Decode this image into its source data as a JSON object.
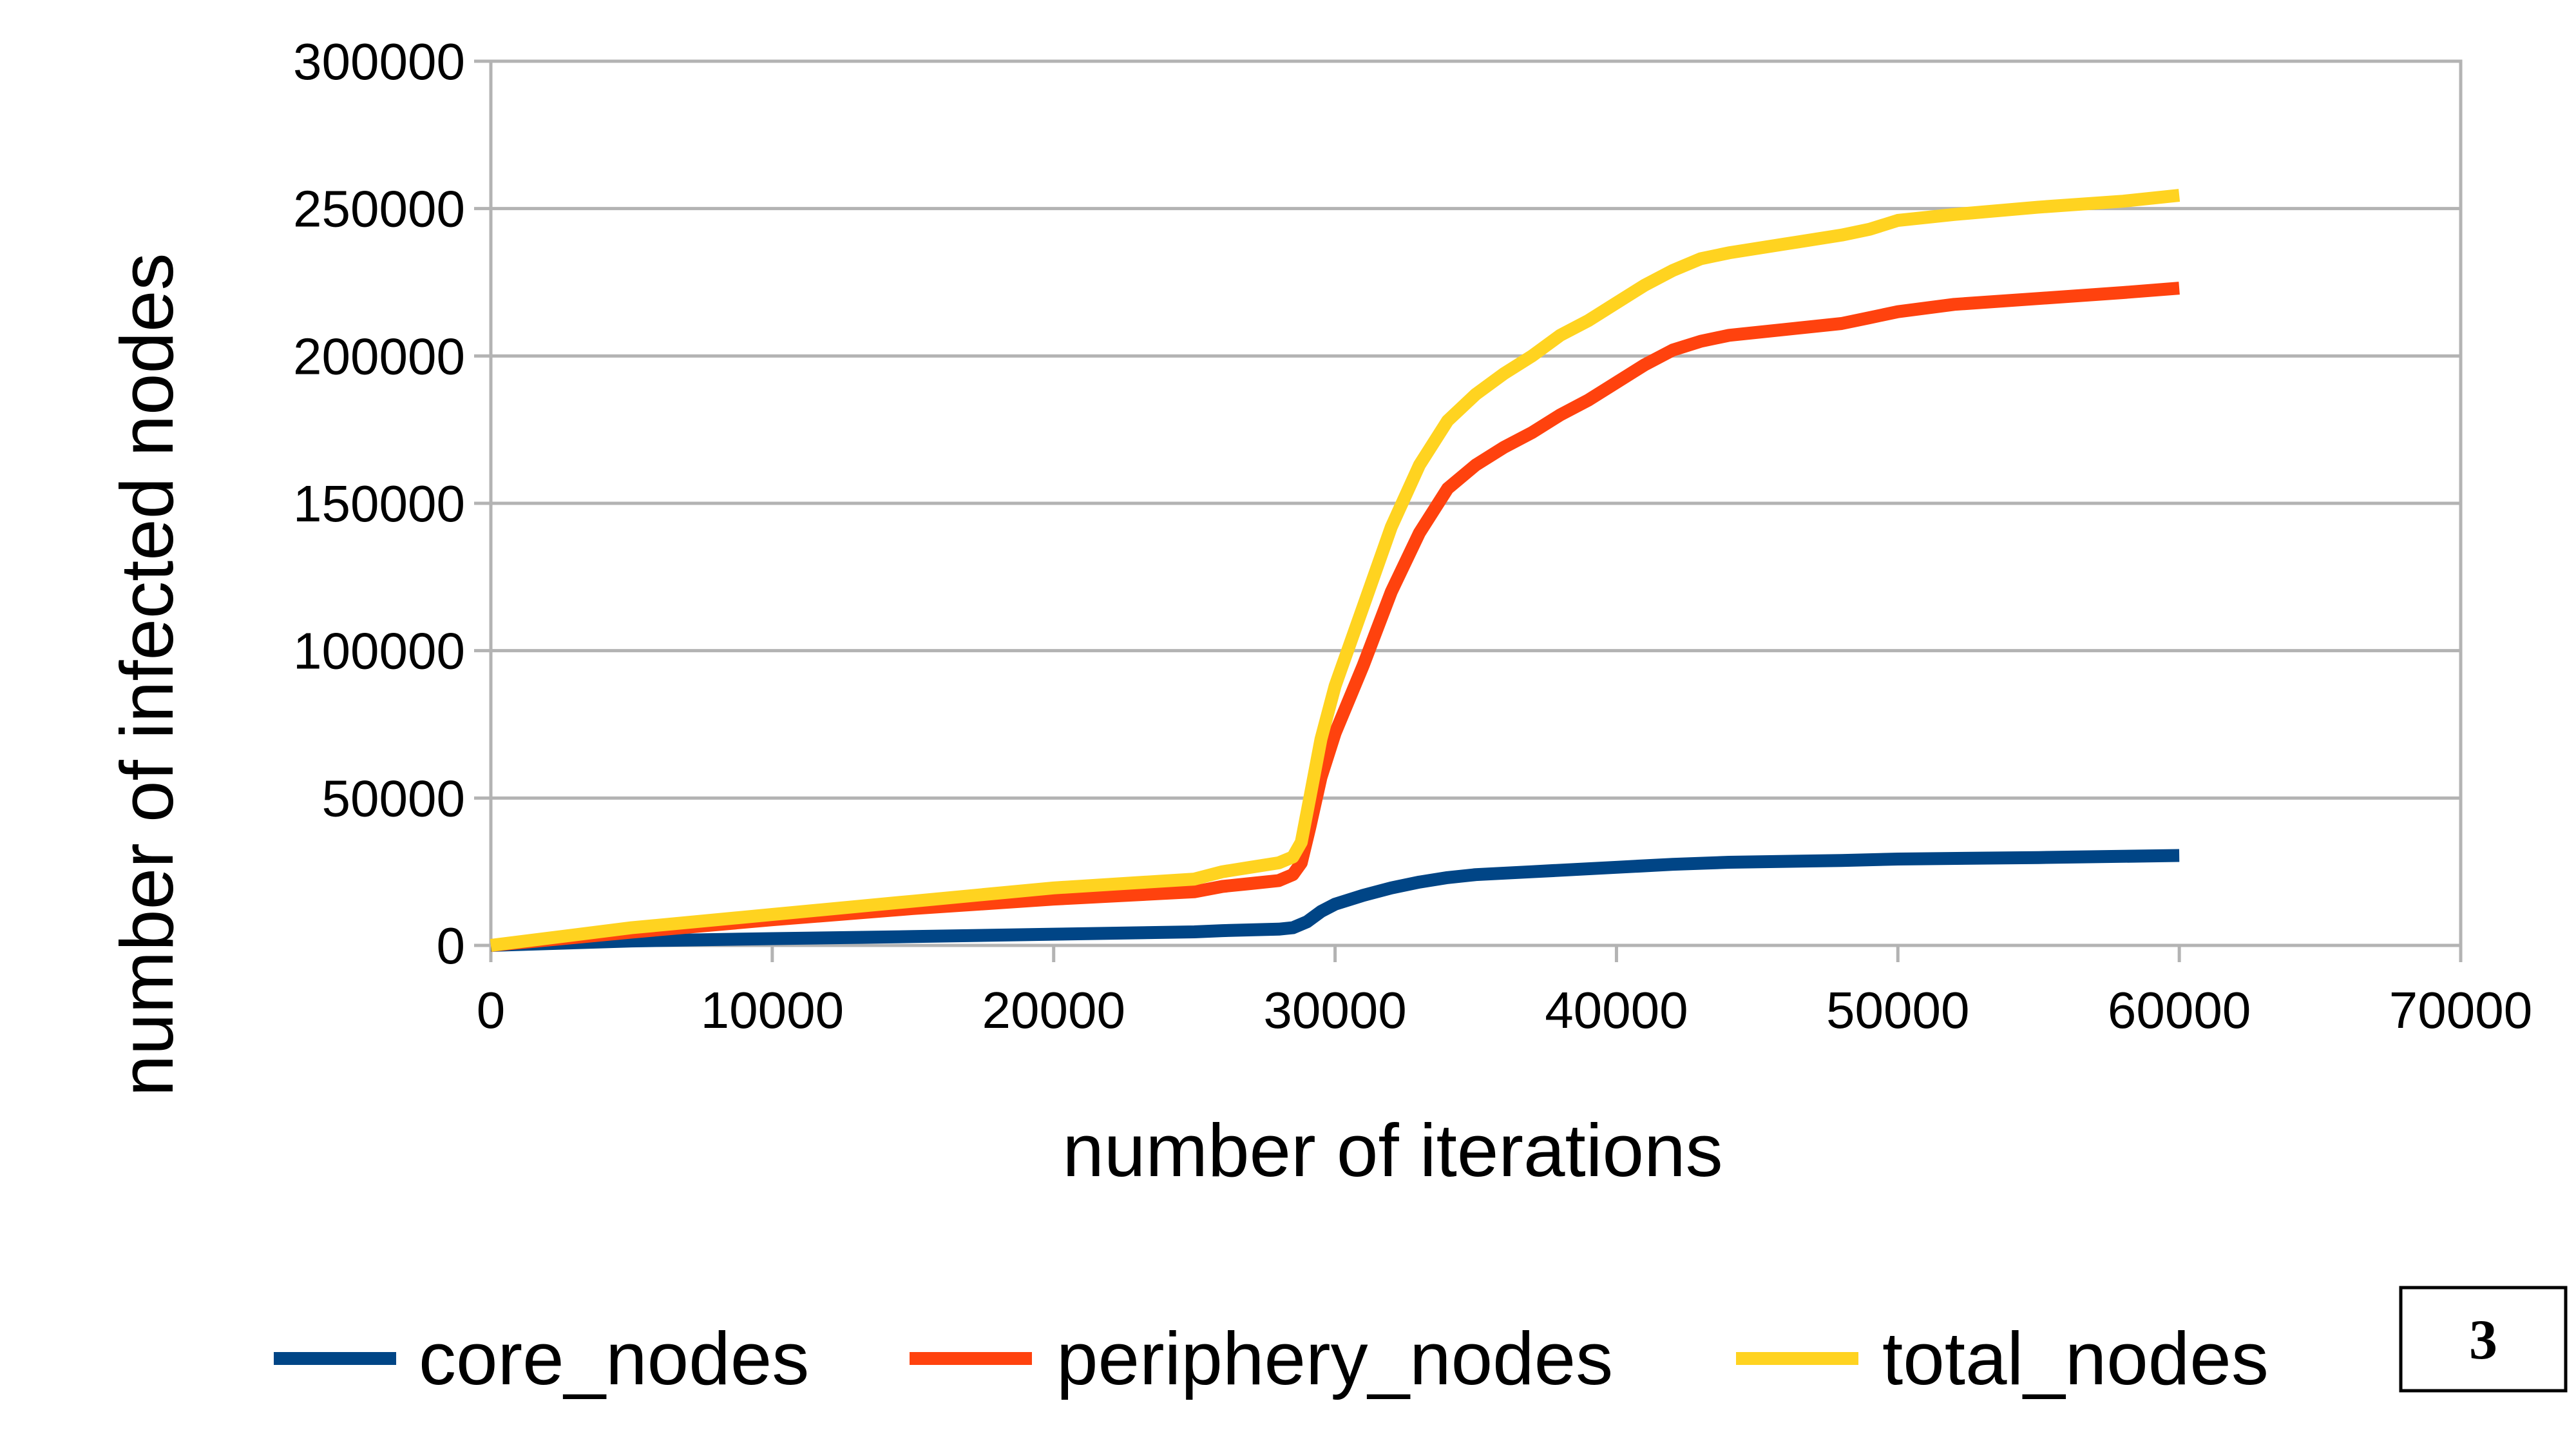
{
  "chart_data": {
    "type": "line",
    "title": "",
    "xlabel": "number of iterations",
    "ylabel": "number of infected nodes",
    "xlim": [
      0,
      70000
    ],
    "ylim": [
      0,
      300000
    ],
    "xticks": [
      0,
      10000,
      20000,
      30000,
      40000,
      50000,
      60000,
      70000
    ],
    "yticks": [
      0,
      50000,
      100000,
      150000,
      200000,
      250000,
      300000
    ],
    "grid": true,
    "legend": "bottom",
    "series": [
      {
        "name": "core_nodes",
        "color": "#004586",
        "x": [
          0,
          5000,
          10000,
          15000,
          20000,
          25000,
          26000,
          28000,
          28500,
          29000,
          29500,
          30000,
          31000,
          32000,
          33000,
          34000,
          35000,
          37000,
          40000,
          42000,
          44000,
          48000,
          50000,
          55000,
          60000
        ],
        "y": [
          0,
          1500,
          2300,
          3000,
          3800,
          4600,
          5000,
          5500,
          6000,
          8000,
          11500,
          14000,
          17000,
          19500,
          21500,
          23000,
          24000,
          25000,
          26500,
          27500,
          28200,
          28800,
          29300,
          29800,
          30500
        ]
      },
      {
        "name": "periphery_nodes",
        "color": "#ff420e",
        "x": [
          0,
          5000,
          10000,
          15000,
          20000,
          25000,
          26000,
          27000,
          28000,
          28500,
          28800,
          29100,
          29500,
          30000,
          31000,
          32000,
          33000,
          34000,
          35000,
          36000,
          37000,
          38000,
          39000,
          40000,
          41000,
          42000,
          43000,
          44000,
          46000,
          48000,
          49000,
          50000,
          52000,
          55000,
          58000,
          60000
        ],
        "y": [
          0,
          4500,
          8700,
          12500,
          15700,
          18200,
          20000,
          21000,
          22000,
          24000,
          28000,
          40000,
          57000,
          72000,
          95000,
          120000,
          140000,
          155000,
          163000,
          169000,
          174000,
          180000,
          185000,
          191000,
          197000,
          202000,
          205000,
          207000,
          209000,
          211000,
          213000,
          215000,
          217500,
          219500,
          221500,
          223000
        ]
      },
      {
        "name": "total_nodes",
        "color": "#ffd320",
        "x": [
          0,
          5000,
          10000,
          15000,
          20000,
          25000,
          26000,
          27000,
          28000,
          28500,
          28800,
          29100,
          29500,
          30000,
          31000,
          32000,
          33000,
          34000,
          35000,
          36000,
          37000,
          38000,
          39000,
          40000,
          41000,
          42000,
          43000,
          44000,
          46000,
          48000,
          49000,
          50000,
          52000,
          55000,
          58000,
          60000
        ],
        "y": [
          0,
          6000,
          10500,
          15000,
          19500,
          22500,
          25000,
          26500,
          28000,
          30000,
          35000,
          50000,
          70000,
          88000,
          115000,
          142000,
          163000,
          178000,
          187000,
          194000,
          200000,
          207000,
          212000,
          218000,
          224000,
          229000,
          233000,
          235000,
          238000,
          241000,
          243000,
          246000,
          248000,
          250500,
          252500,
          254500
        ]
      }
    ]
  },
  "badge": {
    "text": "3"
  }
}
